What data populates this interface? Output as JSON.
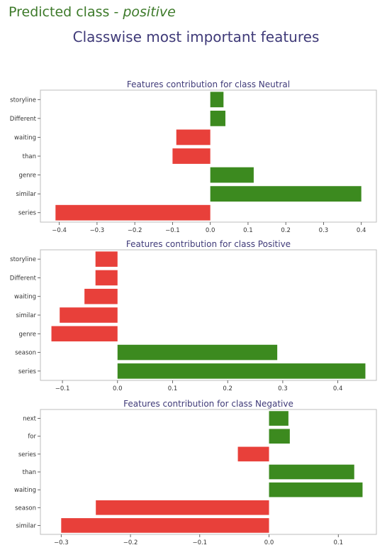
{
  "header": {
    "prediction_prefix": "Predicted class - ",
    "prediction_class": "positive",
    "title": "Classwise most important features"
  },
  "colors": {
    "positive_bar": "#3c8a1f",
    "negative_bar": "#e8403a",
    "title_text": "#3f3a78",
    "prediction_text": "#3d7a2a"
  },
  "chart_data": [
    {
      "type": "bar",
      "orientation": "horizontal",
      "title": "Features contribution for class Neutral",
      "categories": [
        "storyline",
        "Different",
        "waiting",
        "than",
        "genre",
        "similar",
        "series"
      ],
      "values": [
        0.035,
        0.04,
        -0.09,
        -0.1,
        0.115,
        0.4,
        -0.41
      ],
      "xlim": [
        -0.45,
        0.44
      ],
      "xticks": [
        -0.4,
        -0.3,
        -0.2,
        -0.1,
        0.0,
        0.1,
        0.2,
        0.3,
        0.4
      ],
      "xtick_labels": [
        "−0.4",
        "−0.3",
        "−0.2",
        "−0.1",
        "0.0",
        "0.1",
        "0.2",
        "0.3",
        "0.4"
      ],
      "grid": false
    },
    {
      "type": "bar",
      "orientation": "horizontal",
      "title": "Features contribution for class Positive",
      "categories": [
        "storyline",
        "Different",
        "waiting",
        "similar",
        "genre",
        "season",
        "series"
      ],
      "values": [
        -0.04,
        -0.04,
        -0.06,
        -0.105,
        -0.12,
        0.29,
        0.45
      ],
      "xlim": [
        -0.14,
        0.47
      ],
      "xticks": [
        -0.1,
        0.0,
        0.1,
        0.2,
        0.3,
        0.4
      ],
      "xtick_labels": [
        "−0.1",
        "0.0",
        "0.1",
        "0.2",
        "0.3",
        "0.4"
      ],
      "grid": false
    },
    {
      "type": "bar",
      "orientation": "horizontal",
      "title": "Features contribution for class Negative",
      "categories": [
        "next",
        "for",
        "series",
        "than",
        "waiting",
        "season",
        "similar"
      ],
      "values": [
        0.028,
        0.03,
        -0.045,
        0.123,
        0.135,
        -0.25,
        -0.3
      ],
      "xlim": [
        -0.33,
        0.155
      ],
      "xticks": [
        -0.3,
        -0.2,
        -0.1,
        0.0,
        0.1
      ],
      "xtick_labels": [
        "−0.3",
        "−0.2",
        "−0.1",
        "0.0",
        "0.1"
      ],
      "grid": false
    }
  ]
}
